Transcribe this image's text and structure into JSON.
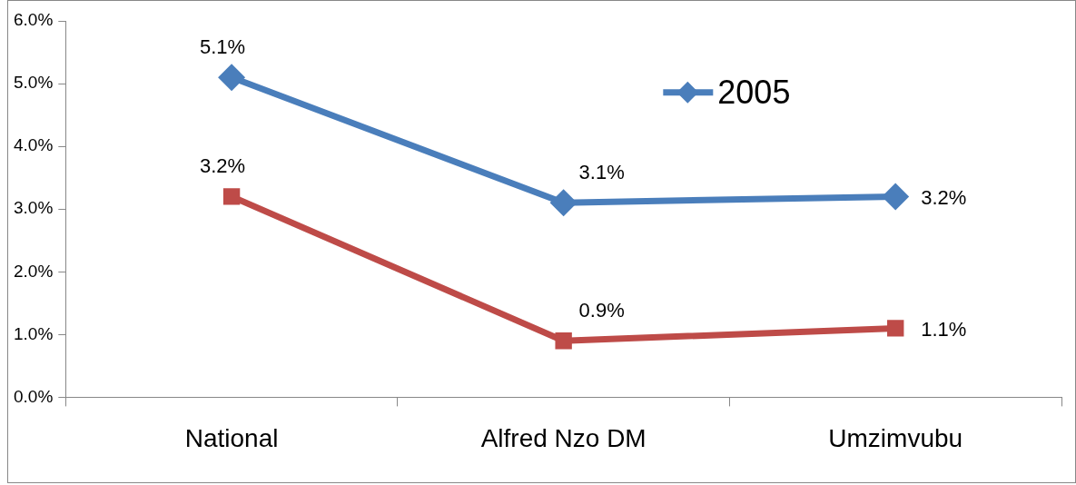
{
  "chart_data": {
    "type": "line",
    "categories": [
      "National",
      "Alfred Nzo DM",
      "Umzimvubu"
    ],
    "series": [
      {
        "name": "2005",
        "color": "#4a7ebb",
        "marker": "diamond",
        "values": [
          5.1,
          3.1,
          3.2
        ],
        "value_labels": [
          "5.1%",
          "3.1%",
          "3.2%"
        ]
      },
      {
        "color": "#be4b48",
        "marker": "square",
        "values": [
          3.2,
          0.9,
          1.1
        ],
        "value_labels": [
          "3.2%",
          "0.9%",
          "1.1%"
        ]
      }
    ],
    "ylim": [
      0,
      6
    ],
    "yticks": [
      {
        "value": 0,
        "label": "0.0%"
      },
      {
        "value": 1,
        "label": "1.0%"
      },
      {
        "value": 2,
        "label": "2.0%"
      },
      {
        "value": 3,
        "label": "3.0%"
      },
      {
        "value": 4,
        "label": "4.0%"
      },
      {
        "value": 5,
        "label": "5.0%"
      },
      {
        "value": 6,
        "label": "6.0%"
      }
    ],
    "grid": false,
    "legend": "top right",
    "line_style": "solid"
  }
}
